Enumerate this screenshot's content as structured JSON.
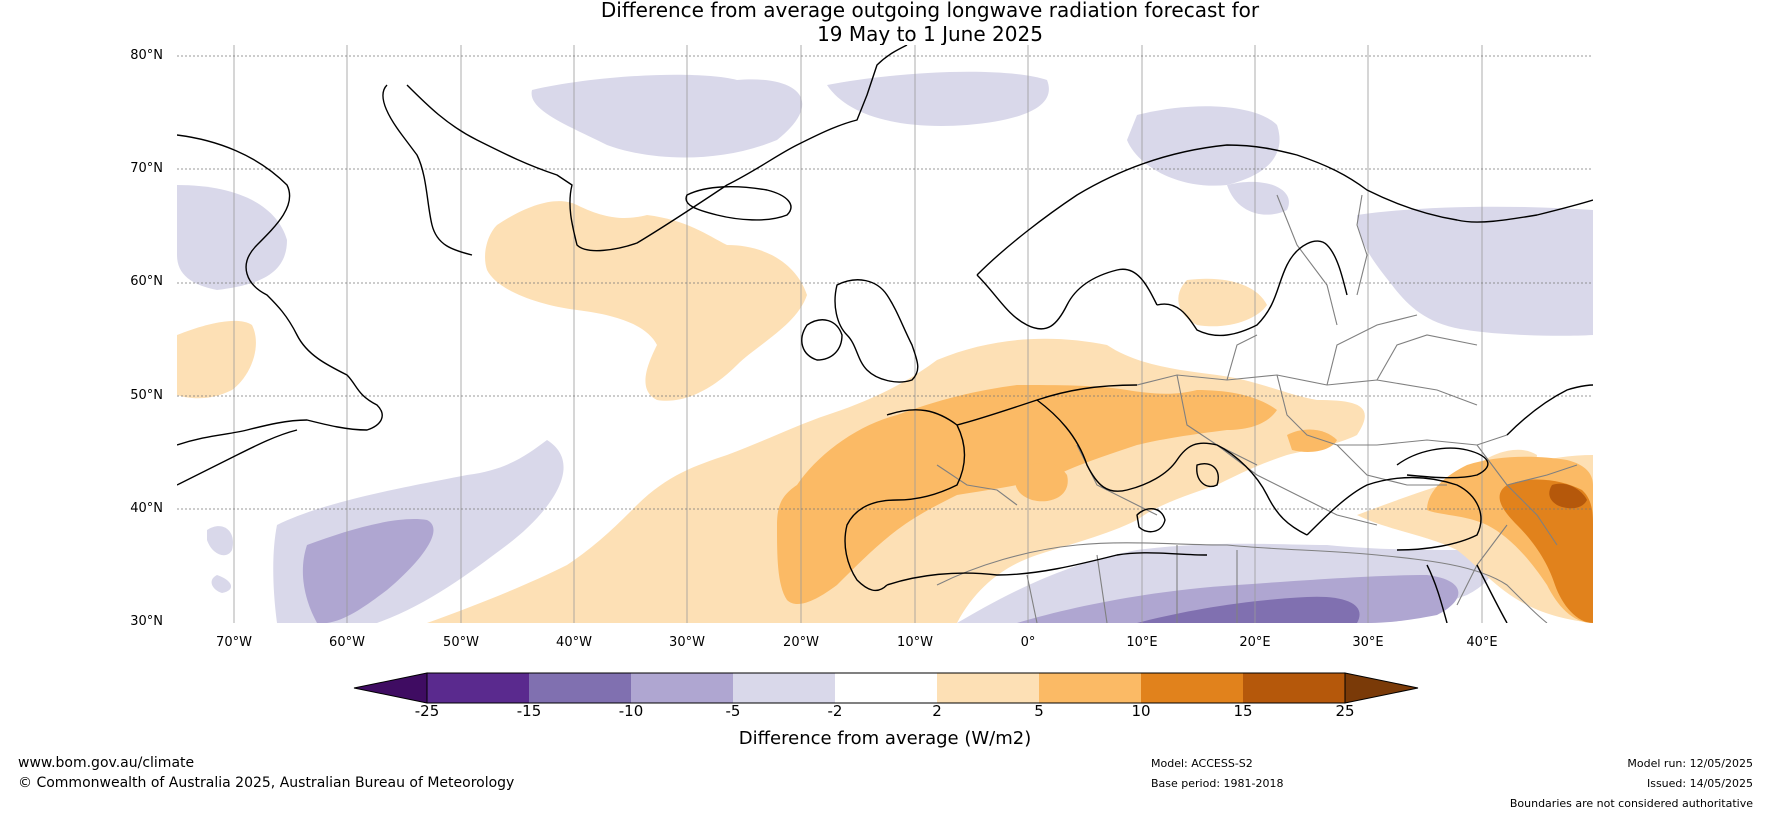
{
  "title": {
    "line1": "Difference from average outgoing longwave radiation forecast for",
    "line2": "19 May to 1 June 2025"
  },
  "axes": {
    "lat_labels": [
      "80°N",
      "70°N",
      "60°N",
      "50°N",
      "40°N",
      "30°N"
    ],
    "lon_labels": [
      "70°W",
      "60°W",
      "50°W",
      "40°W",
      "30°W",
      "20°W",
      "10°W",
      "0°",
      "10°E",
      "20°E",
      "30°E",
      "40°E"
    ],
    "lon_range": [
      -75,
      50
    ],
    "lat_range": [
      30,
      80.5
    ],
    "grid": true
  },
  "legend": {
    "ticks": [
      "-25",
      "-15",
      "-10",
      "-5",
      "-2",
      "2",
      "5",
      "10",
      "15",
      "25"
    ],
    "colors": [
      "#3f0c62",
      "#5a2a8e",
      "#8070b0",
      "#afa6d1",
      "#d9d8ea",
      "#ffffff",
      "#fde0b5",
      "#fbba65",
      "#e1821c",
      "#b5580b",
      "#7a3a08"
    ],
    "label": "Difference from average (W/m2)"
  },
  "footer": {
    "website": "www.bom.gov.au/climate",
    "copyright": "© Commonwealth of Australia 2025, Australian Bureau of Meteorology",
    "model": "Model: ACCESS-S2",
    "base_period": "Base period: 1981-2018",
    "model_run": "Model run: 12/05/2025",
    "issued": "Issued: 14/05/2025",
    "disclaimer": "Boundaries are not considered authoritative"
  }
}
